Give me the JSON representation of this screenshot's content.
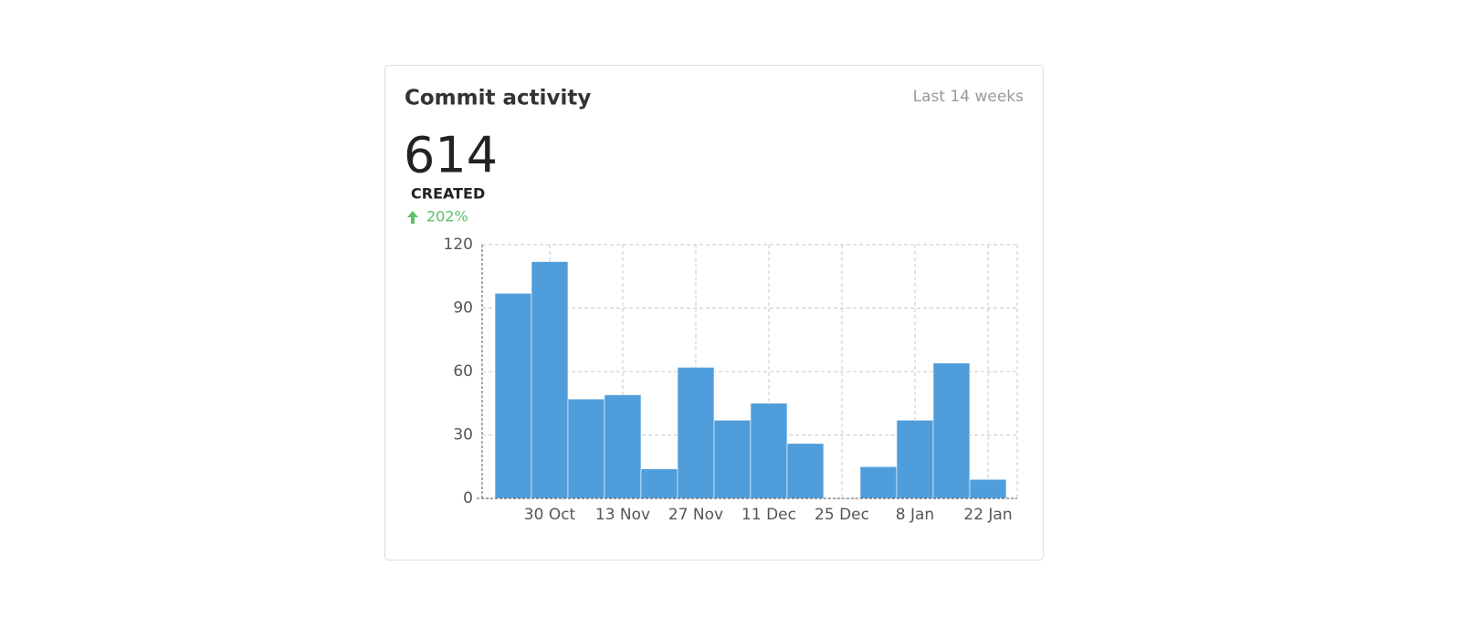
{
  "card": {
    "title": "Commit activity",
    "period": "Last 14 weeks",
    "total": 614,
    "total_label": "CREATED",
    "change": "202%",
    "change_color": "#5cbf6a"
  },
  "chart_data": {
    "type": "bar",
    "categories": [
      null,
      "30 Oct",
      null,
      "13 Nov",
      null,
      "27 Nov",
      null,
      "11 Dec",
      null,
      "25 Dec",
      null,
      "8 Jan",
      null,
      "22 Jan"
    ],
    "values": [
      97,
      112,
      47,
      49,
      14,
      62,
      37,
      45,
      26,
      0,
      15,
      37,
      64,
      9
    ],
    "color": "#509ddb",
    "ylim": [
      0,
      120
    ],
    "yticks": [
      0,
      30,
      60,
      90,
      120
    ],
    "grid": true
  }
}
